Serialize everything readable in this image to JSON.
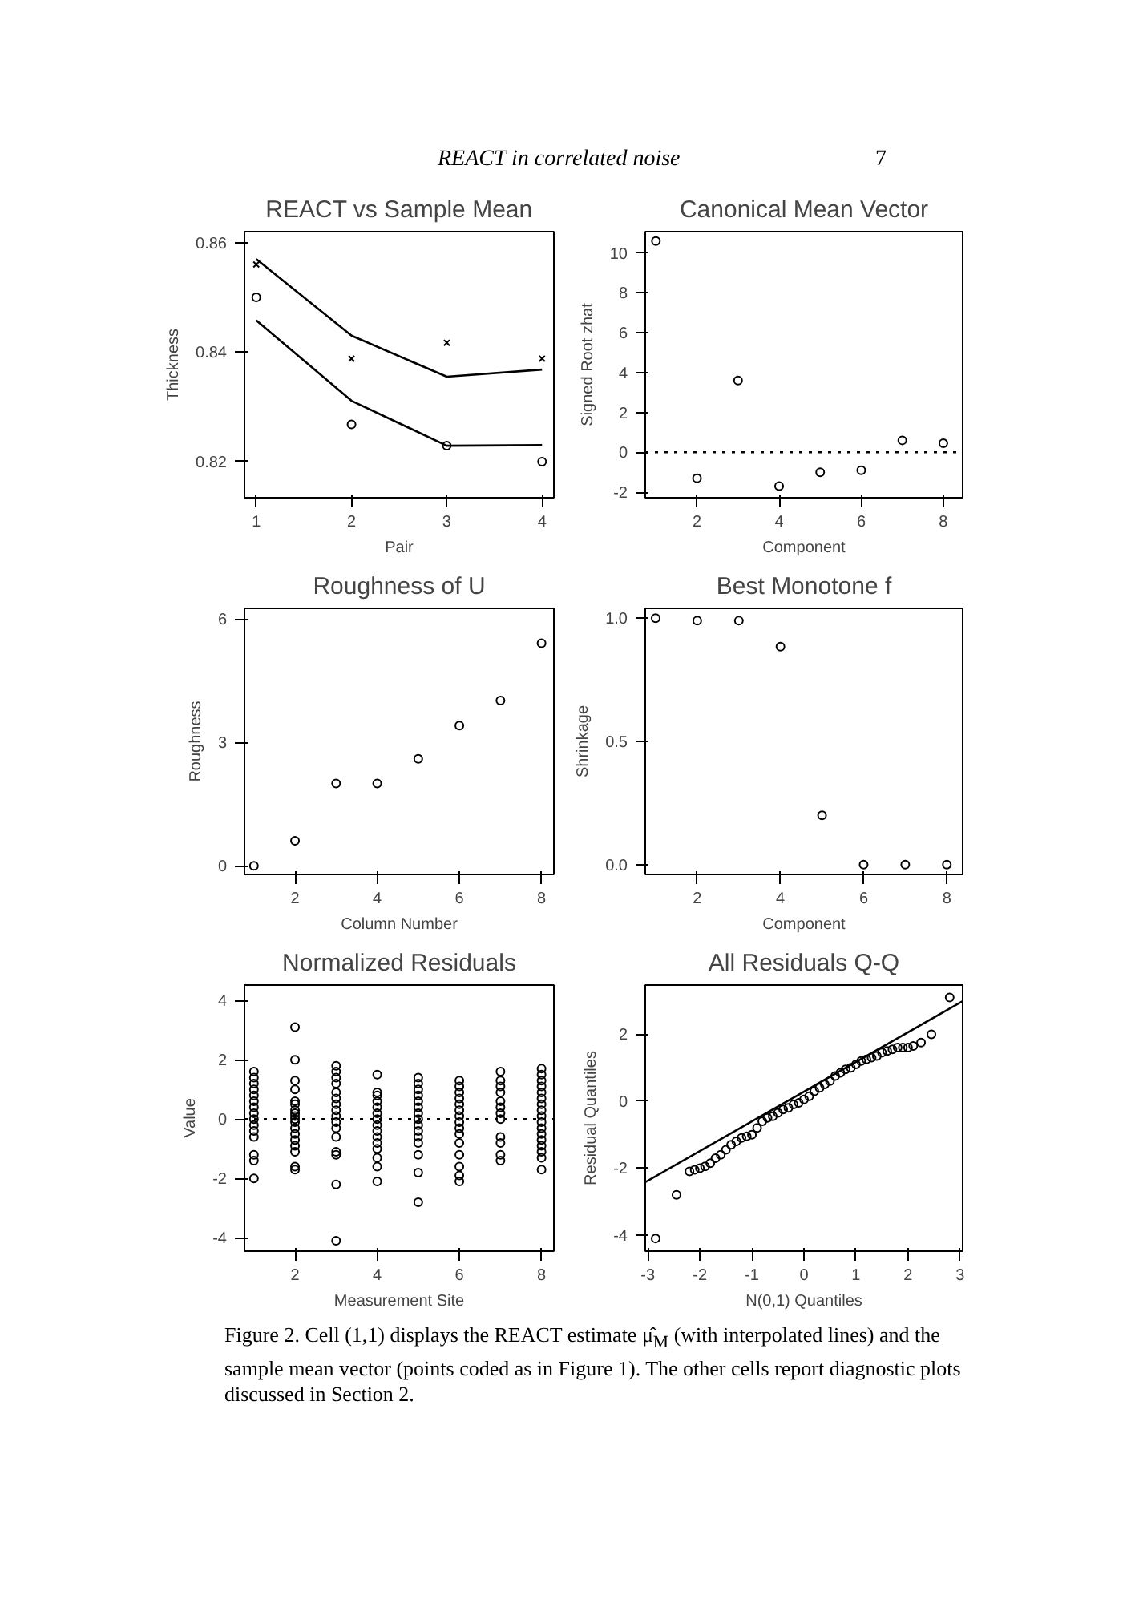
{
  "chart_data": [
    {
      "type": "line",
      "title": "REACT vs Sample Mean",
      "xlabel": "Pair",
      "ylabel": "Thickness",
      "x": [
        1,
        2,
        3,
        4
      ],
      "xlim": [
        0.876,
        4.124
      ],
      "ylim": [
        0.8134,
        0.862
      ],
      "xticks": [
        1,
        2,
        3,
        4
      ],
      "yticks": [
        0.82,
        0.84,
        0.86
      ],
      "grid": false,
      "annotations": [
        "REACT in correlated noise",
        "7"
      ],
      "series": [
        {
          "type": "line",
          "color": "#000000",
          "values": [
            0.857,
            0.843,
            0.8355,
            0.8368
          ]
        },
        {
          "type": "line",
          "color": "#000000",
          "values": [
            0.8458,
            0.8311,
            0.8229,
            0.823
          ]
        },
        {
          "type": "scatter",
          "marker": "cross",
          "color": "#000000",
          "values": [
            0.856,
            0.8388,
            0.8417,
            0.8388
          ]
        },
        {
          "type": "scatter",
          "marker": "circle",
          "color": "#000000",
          "values": [
            0.85,
            0.8268,
            0.8229,
            0.82
          ]
        }
      ]
    },
    {
      "type": "scatter",
      "title": "Canonical Mean Vector",
      "xlabel": "Component",
      "ylabel": "Signed Root zhat",
      "marker": "circle",
      "color": "#000000",
      "x": [
        1,
        2,
        3,
        4,
        5,
        6,
        7,
        8
      ],
      "values": [
        10.6,
        -1.3,
        3.6,
        -1.7,
        -1.0,
        -0.9,
        0.6,
        0.45
      ],
      "xlim": [
        0.74,
        8.47
      ],
      "ylim": [
        -2.28,
        11.07
      ],
      "xticks": [
        2,
        4,
        6,
        8
      ],
      "yticks": [
        -2,
        0,
        2,
        4,
        6,
        8,
        10
      ],
      "grid": false,
      "ref_lines": [
        {
          "axis": "y",
          "value": 0,
          "line_style": "dotted",
          "color": "#000000"
        }
      ]
    },
    {
      "type": "scatter",
      "title": "Roughness of U",
      "xlabel": "Column Number",
      "ylabel": "Roughness",
      "marker": "circle",
      "color": "#000000",
      "x": [
        1,
        2,
        3,
        4,
        5,
        6,
        7,
        8
      ],
      "values": [
        0.0,
        0.61,
        2.0,
        2.0,
        2.6,
        3.41,
        4.02,
        5.41
      ],
      "xlim": [
        0.77,
        8.3
      ],
      "ylim": [
        -0.21,
        6.26
      ],
      "xticks": [
        2,
        4,
        6,
        8
      ],
      "yticks": [
        0,
        3,
        6
      ],
      "grid": false
    },
    {
      "type": "scatter",
      "title": "Best Monotone f",
      "xlabel": "Component",
      "ylabel": "Shrinkage",
      "marker": "circle",
      "color": "#000000",
      "x": [
        1,
        2,
        3,
        4,
        5,
        6,
        7,
        8
      ],
      "values": [
        1.0,
        0.99,
        0.99,
        0.885,
        0.2,
        0.0,
        0.0,
        0.0
      ],
      "xlim": [
        0.75,
        8.38
      ],
      "ylim": [
        -0.04,
        1.04
      ],
      "xticks": [
        2,
        4,
        6,
        8
      ],
      "yticks": [
        {
          "value": 0,
          "label": "0.0"
        },
        0.5,
        {
          "value": 1,
          "label": "1.0"
        }
      ],
      "grid": false
    },
    {
      "type": "scatter",
      "title": "Normalized Residuals",
      "xlabel": "Measurement Site",
      "ylabel": "Value",
      "marker": "circle",
      "color": "#000000",
      "xlim": [
        0.77,
        8.3
      ],
      "ylim": [
        -4.45,
        4.52
      ],
      "xticks": [
        2,
        4,
        6,
        8
      ],
      "yticks": [
        -4,
        -2,
        0,
        2,
        4
      ],
      "grid": false,
      "ref_lines": [
        {
          "axis": "y",
          "value": 0,
          "line_style": "dotted",
          "color": "#000000"
        }
      ],
      "x": [
        1,
        1,
        1,
        1,
        1,
        1,
        1,
        1,
        1,
        1,
        1,
        1,
        1,
        1,
        1,
        2,
        2,
        2,
        2,
        2,
        2,
        2,
        2,
        2,
        2,
        2,
        2,
        2,
        2,
        2,
        2,
        2,
        2,
        3,
        3,
        3,
        3,
        3,
        3,
        3,
        3,
        3,
        3,
        3,
        3,
        3,
        3,
        3,
        3,
        4,
        4,
        4,
        4,
        4,
        4,
        4,
        4,
        4,
        4,
        4,
        4,
        4,
        4,
        4,
        5,
        5,
        5,
        5,
        5,
        5,
        5,
        5,
        5,
        5,
        5,
        5,
        5,
        5,
        5,
        6,
        6,
        6,
        6,
        6,
        6,
        6,
        6,
        6,
        6,
        6,
        6,
        6,
        6,
        6,
        7,
        7,
        7,
        7,
        7,
        7,
        7,
        7,
        7,
        7,
        7,
        7,
        8,
        8,
        8,
        8,
        8,
        8,
        8,
        8,
        8,
        8,
        8,
        8,
        8,
        8,
        8,
        8,
        8
      ],
      "values": [
        1.6,
        1.4,
        1.2,
        1.0,
        0.8,
        0.6,
        0.4,
        0.2,
        0.0,
        -0.2,
        -0.4,
        -0.6,
        -1.2,
        -1.4,
        -2.0,
        3.1,
        2.0,
        1.3,
        1.0,
        0.6,
        0.5,
        0.3,
        0.2,
        0.1,
        0.0,
        -0.1,
        -0.3,
        -0.5,
        -0.7,
        -0.9,
        -1.1,
        -1.6,
        -1.7,
        1.8,
        1.6,
        1.4,
        1.2,
        0.9,
        0.7,
        0.5,
        0.3,
        0.1,
        -0.1,
        -0.3,
        -0.6,
        -1.1,
        -1.2,
        -2.2,
        -4.1,
        1.5,
        0.9,
        0.8,
        0.6,
        0.4,
        0.2,
        0.0,
        -0.2,
        -0.4,
        -0.6,
        -0.8,
        -1.0,
        -1.3,
        -1.6,
        -2.1,
        1.4,
        1.2,
        1.0,
        0.8,
        0.6,
        0.4,
        0.2,
        0.0,
        -0.2,
        -0.4,
        -0.6,
        -0.8,
        -1.2,
        -1.8,
        -2.8,
        1.3,
        1.1,
        0.9,
        0.7,
        0.5,
        0.3,
        0.1,
        -0.1,
        -0.3,
        -0.5,
        -0.8,
        -1.2,
        -1.6,
        -1.9,
        -2.1,
        1.6,
        1.3,
        1.1,
        0.9,
        0.6,
        0.4,
        0.2,
        0.0,
        -0.6,
        -0.8,
        -1.2,
        -1.4,
        1.7,
        1.5,
        1.3,
        1.1,
        0.9,
        0.7,
        0.5,
        0.3,
        0.1,
        -0.1,
        -0.3,
        -0.5,
        -0.7,
        -0.9,
        -1.1,
        -1.3,
        -1.7
      ]
    },
    {
      "type": "scatter",
      "title": "All Residuals Q-Q",
      "xlabel": "N(0,1) Quantiles",
      "ylabel": "Residual Quantiles",
      "xlim": [
        -3.05,
        3.05
      ],
      "ylim": [
        -4.48,
        3.47
      ],
      "xticks": [
        -3,
        -2,
        -1,
        0,
        1,
        2,
        3
      ],
      "yticks": [
        -4,
        -2,
        0,
        2
      ],
      "grid": false,
      "annotations": [
        "Figure 2. Cell (1,1) displays the REACT estimate μ̂$_{M}$ (with interpolated lines) and the sample mean vector (points coded as in Figure 1). The other cells report diagnostic plots discussed in Section 2."
      ],
      "series": [
        {
          "type": "scatter",
          "marker": "circle",
          "color": "#000000",
          "x": [
            -2.85,
            -2.45,
            -2.2,
            -2.1,
            -2.0,
            -1.9,
            -1.8,
            -1.7,
            -1.6,
            -1.5,
            -1.4,
            -1.3,
            -1.2,
            -1.1,
            -1.0,
            -0.9,
            -0.8,
            -0.7,
            -0.6,
            -0.5,
            -0.4,
            -0.3,
            -0.2,
            -0.1,
            0.0,
            0.1,
            0.2,
            0.3,
            0.4,
            0.5,
            0.6,
            0.7,
            0.8,
            0.9,
            1.0,
            1.1,
            1.2,
            1.3,
            1.4,
            1.5,
            1.6,
            1.7,
            1.8,
            1.9,
            2.0,
            2.1,
            2.25,
            2.45,
            2.8
          ],
          "values": [
            -4.1,
            -2.8,
            -2.1,
            -2.05,
            -2.0,
            -1.95,
            -1.85,
            -1.7,
            -1.6,
            -1.45,
            -1.3,
            -1.2,
            -1.1,
            -1.05,
            -1.0,
            -0.8,
            -0.6,
            -0.5,
            -0.45,
            -0.35,
            -0.25,
            -0.2,
            -0.1,
            -0.05,
            0.05,
            0.15,
            0.3,
            0.4,
            0.5,
            0.6,
            0.75,
            0.85,
            0.95,
            1.0,
            1.1,
            1.2,
            1.25,
            1.3,
            1.35,
            1.45,
            1.5,
            1.55,
            1.6,
            1.6,
            1.6,
            1.65,
            1.75,
            2.0,
            3.1
          ]
        },
        {
          "type": "line",
          "color": "#000000",
          "x": [
            -3.05,
            3.05
          ],
          "values": [
            -2.42,
            2.99
          ]
        }
      ]
    }
  ]
}
